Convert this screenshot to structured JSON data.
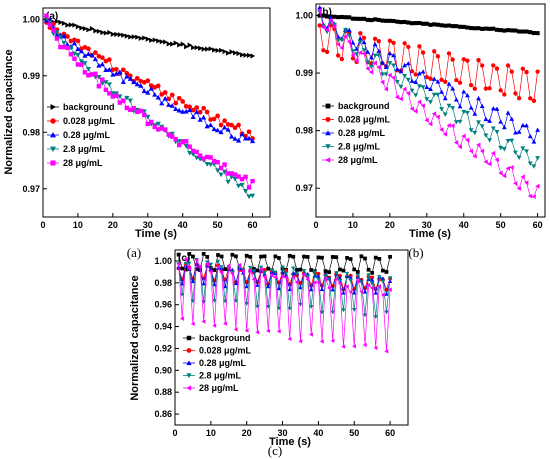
{
  "colors": {
    "background": "#000000",
    "c0028": "#ff0000",
    "c028": "#0000ff",
    "c28": "#008080",
    "c28b": "#ff00ff"
  },
  "chart_data": [
    {
      "type": "line",
      "panel_label": "(a)",
      "caption": "(a)",
      "xlabel": "Time (s)",
      "ylabel": "Normalized capacitance",
      "xlim": [
        0,
        65
      ],
      "ylim": [
        0.965,
        1.002
      ],
      "xticks": [
        0,
        10,
        20,
        30,
        40,
        50,
        60
      ],
      "yticks": [
        0.97,
        0.98,
        0.99,
        1.0
      ],
      "ytick_labels": [
        "0.97",
        "0.98",
        "0.99",
        "1.00"
      ],
      "legend": "lower-left",
      "series": [
        {
          "name": "background",
          "marker": "triangle-right",
          "color": "#000000",
          "start": 1.0,
          "end": 0.9935,
          "curve": 0.85,
          "noise": 0.0002,
          "period": 0,
          "amp": 0
        },
        {
          "name": "0.028 μg/mL",
          "marker": "circle",
          "color": "#ff0000",
          "start": 1.0,
          "end": 0.9795,
          "curve": 0.8,
          "noise": 0.0008,
          "period": 0,
          "amp": 0
        },
        {
          "name": "0.28 μg/mL",
          "marker": "triangle-up",
          "color": "#0000ff",
          "start": 1.0,
          "end": 0.978,
          "curve": 0.78,
          "noise": 0.0009,
          "period": 0,
          "amp": 0
        },
        {
          "name": "2.8 μg/mL",
          "marker": "triangle-down",
          "color": "#008080",
          "start": 1.0,
          "end": 0.969,
          "curve": 0.8,
          "noise": 0.0008,
          "period": 0,
          "amp": 0
        },
        {
          "name": "28 μg/mL",
          "marker": "square",
          "color": "#ff00ff",
          "start": 1.0,
          "end": 0.9705,
          "curve": 0.72,
          "noise": 0.0009,
          "period": 0,
          "amp": 0
        }
      ]
    },
    {
      "type": "line",
      "panel_label": "(b)",
      "caption": "(b)",
      "xlabel": "Time (s)",
      "ylabel": "",
      "xlim": [
        0,
        62
      ],
      "ylim": [
        0.965,
        1.002
      ],
      "xticks": [
        0,
        10,
        20,
        30,
        40,
        50,
        60
      ],
      "yticks": [
        0.97,
        0.98,
        0.99,
        1.0
      ],
      "ytick_labels": [
        "0.97",
        "0.98",
        "0.99",
        "1.00"
      ],
      "legend": "lower-left",
      "series": [
        {
          "name": "background",
          "marker": "square",
          "color": "#000000",
          "start": 1.0,
          "end": 0.997,
          "curve": 1.0,
          "noise": 0.0001,
          "period": 0,
          "amp": 0
        },
        {
          "name": "0.028 μg/mL",
          "marker": "circle",
          "color": "#ff0000",
          "start": 0.996,
          "end": 0.9875,
          "curve": 0.9,
          "noise": 0.0004,
          "period": 4,
          "amp": 0.0025
        },
        {
          "name": "0.28 μg/mL",
          "marker": "triangle-up",
          "color": "#0000ff",
          "start": 1.0,
          "end": 0.979,
          "curve": 0.85,
          "noise": 0.0005,
          "period": 4,
          "amp": 0.0012
        },
        {
          "name": "2.8 μg/mL",
          "marker": "triangle-down",
          "color": "#008080",
          "start": 1.0,
          "end": 0.9745,
          "curve": 0.85,
          "noise": 0.0005,
          "period": 4,
          "amp": 0.0012
        },
        {
          "name": "28 μg/mL",
          "marker": "triangle-left",
          "color": "#ff00ff",
          "start": 1.0,
          "end": 0.969,
          "curve": 0.85,
          "noise": 0.0005,
          "period": 4,
          "amp": 0.0012
        }
      ]
    },
    {
      "type": "line",
      "panel_label": "(c)",
      "caption": "(c)",
      "xlabel": "Time (s)",
      "ylabel": "Normalized capacitance",
      "xlim": [
        0,
        65
      ],
      "ylim": [
        0.85,
        1.01
      ],
      "xticks": [
        0,
        10,
        20,
        30,
        40,
        50,
        60
      ],
      "yticks": [
        0.86,
        0.88,
        0.9,
        0.92,
        0.94,
        0.96,
        0.98,
        1.0
      ],
      "ytick_labels": [
        "0.86",
        "0.88",
        "0.90",
        "0.92",
        "0.94",
        "0.96",
        "0.98",
        "1.00"
      ],
      "legend": "lower-left",
      "series": [
        {
          "name": "background",
          "marker": "square",
          "color": "#000000",
          "start": 0.999,
          "end": 0.996,
          "curve": 1.0,
          "noise": 0.001,
          "period": 4,
          "amp": 0.007
        },
        {
          "name": "0.028 μg/mL",
          "marker": "circle",
          "color": "#ff0000",
          "start": 0.99,
          "end": 0.978,
          "curve": 1.0,
          "noise": 0.002,
          "period": 3,
          "amp": 0.006
        },
        {
          "name": "0.28 μg/mL",
          "marker": "triangle-up",
          "color": "#0000ff",
          "start": 0.988,
          "end": 0.975,
          "curve": 1.0,
          "noise": 0.002,
          "period": 3,
          "amp": 0.008
        },
        {
          "name": "2.8 μg/mL",
          "marker": "triangle-down",
          "color": "#008080",
          "start": 0.982,
          "end": 0.965,
          "curve": 1.0,
          "noise": 0.003,
          "period": 3,
          "amp": 0.018
        },
        {
          "name": "28 μg/mL",
          "marker": "triangle-left",
          "color": "#ff00ff",
          "start": 0.97,
          "end": 0.945,
          "curve": 1.0,
          "noise": 0.004,
          "period": 3,
          "amp": 0.03
        }
      ]
    }
  ]
}
